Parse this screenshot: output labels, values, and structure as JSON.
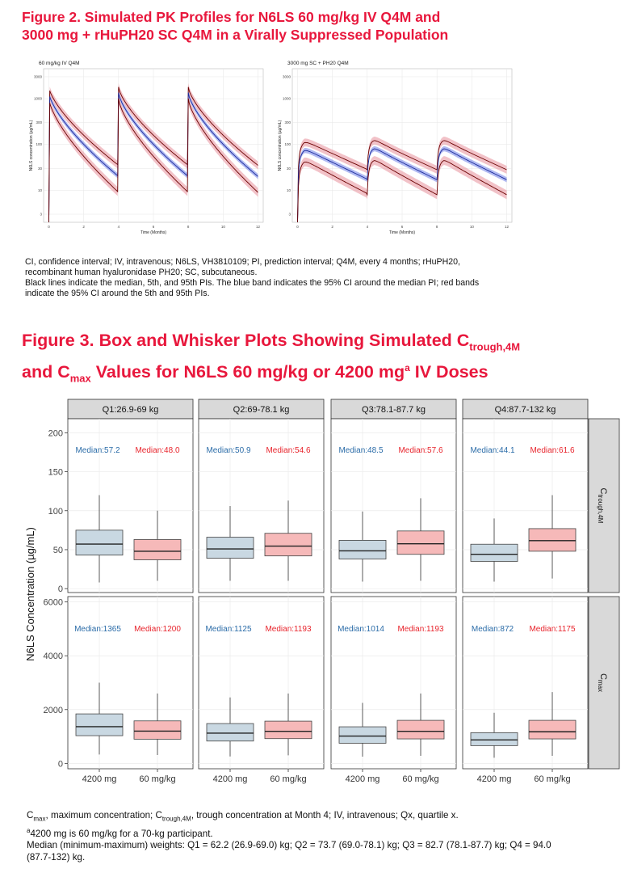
{
  "figure2": {
    "title_line1": "Figure 2. Simulated PK Profiles for N6LS 60 mg/kg IV Q4M and",
    "title_line2": "3000 mg + rHuPH20 SC Q4M in a Virally Suppressed Population",
    "notes": [
      "CI, confidence interval; IV, intravenous; N6LS, VH3810109; PI, prediction interval; Q4M, every 4 months; rHuPH20,",
      "recombinant human hyaluronidase PH20; SC, subcutaneous.",
      "Black lines indicate the median, 5th, and 95th PIs. The blue band indicates the 95% CI around the median PI; red bands",
      "indicate the 95% CI around the 5th and 95th PIs."
    ]
  },
  "figure3": {
    "title_line1_pre": "Figure 3. Box and Whisker Plots Showing Simulated C",
    "title_line1_sub": "trough,4M",
    "title_line2_pre": "and C",
    "title_line2_sub": "max",
    "title_line2_mid": " Values for N6LS 60 mg/kg or 4200 mg",
    "title_line2_sup": "a",
    "title_line2_post": " IV Doses",
    "notes": {
      "line1_a": "C",
      "line1_a_sub": "max",
      "line1_b": ", maximum concentration; C",
      "line1_b_sub": "trough,4M",
      "line1_c": ", trough concentration at Month 4; IV, intravenous; Qx, quartile x.",
      "line2_sup": "a",
      "line2": "4200 mg is 60 mg/kg for a 70-kg participant.",
      "line3": "Median (minimum-maximum) weights: Q1 = 62.2 (26.9-69.0) kg; Q2 = 73.7 (69.0-78.1) kg; Q3 = 82.7 (78.1-87.7) kg; Q4 = 94.0",
      "line4": "(87.7-132) kg."
    }
  },
  "chart_data": [
    {
      "type": "line",
      "panel": "60 mg/kg IV Q4M",
      "xlabel": "Time (Months)",
      "ylabel": "N6LS concentration (µg/mL)",
      "x_ticks": [
        0,
        2,
        4,
        6,
        8,
        10,
        12
      ],
      "y_ticks": [
        3,
        10,
        30,
        100,
        300,
        1000,
        3000
      ],
      "y_scale": "log",
      "xlim": [
        -0.3,
        12.3
      ],
      "ylim": [
        2,
        4500
      ],
      "dose_times": [
        0,
        4,
        8
      ],
      "series": [
        {
          "name": "95th PI",
          "peak": 1800,
          "trough": 35,
          "color": "#111111",
          "band_color": "#e8909a"
        },
        {
          "name": "median",
          "peak": 1350,
          "trough": 20,
          "color": "#111111",
          "band_color": "#6f80e8"
        },
        {
          "name": "5th PI",
          "peak": 1000,
          "trough": 9,
          "color": "#111111",
          "band_color": "#e8909a"
        }
      ]
    },
    {
      "type": "line",
      "panel": "3000 mg SC + PH20 Q4M",
      "xlabel": "Time (Months)",
      "ylabel": "N6LS concentration (µg/mL)",
      "x_ticks": [
        0,
        2,
        4,
        6,
        8,
        10,
        12
      ],
      "y_ticks": [
        3,
        10,
        30,
        100,
        300,
        1000,
        3000
      ],
      "y_scale": "log",
      "xlim": [
        -0.3,
        12.3
      ],
      "ylim": [
        2,
        4500
      ],
      "dose_times": [
        0,
        4,
        8
      ],
      "series": [
        {
          "name": "95th PI",
          "peak": 120,
          "trough": 28,
          "color": "#111111",
          "band_color": "#e8909a"
        },
        {
          "name": "median",
          "peak": 80,
          "trough": 17,
          "color": "#111111",
          "band_color": "#6f80e8"
        },
        {
          "name": "5th PI",
          "peak": 45,
          "trough": 8,
          "color": "#111111",
          "band_color": "#e8909a"
        }
      ]
    },
    {
      "type": "box",
      "facets_columns": [
        "Q1:26.9-69 kg",
        "Q2:69-78.1 kg",
        "Q3:78.1-87.7 kg",
        "Q4:87.7-132 kg"
      ],
      "facets_rows": [
        {
          "label": "C",
          "label_sub": "trough,4M",
          "ylim": [
            -5,
            218
          ],
          "y_ticks": [
            0,
            50,
            100,
            150,
            200
          ]
        },
        {
          "label": "C",
          "label_sub": "max",
          "ylim": [
            -200,
            6200
          ],
          "y_ticks": [
            0,
            2000,
            4000,
            6000
          ]
        }
      ],
      "categories": [
        "4200 mg",
        "60 mg/kg"
      ],
      "ylabel": "N6LS Concentration (µg/mL)",
      "colors": {
        "4200 mg": "#c9d8e2",
        "60 mg/kg": "#f6b9b9",
        "median_text_4200": "#2b6ca8",
        "median_text_60": "#e8242c"
      },
      "data": [
        [
          [
            {
              "category": "4200 mg",
              "min": 8,
              "q1": 43,
              "median": 57.2,
              "q3": 75,
              "max": 120,
              "label": "Median:57.2"
            },
            {
              "category": "60 mg/kg",
              "min": 10,
              "q1": 37,
              "median": 48.0,
              "q3": 63,
              "max": 100,
              "label": "Median:48.0"
            }
          ],
          [
            {
              "category": "4200 mg",
              "min": 10,
              "q1": 39,
              "median": 50.9,
              "q3": 66,
              "max": 106,
              "label": "Median:50.9"
            },
            {
              "category": "60 mg/kg",
              "min": 10,
              "q1": 42,
              "median": 54.6,
              "q3": 71,
              "max": 113,
              "label": "Median:54.6"
            }
          ],
          [
            {
              "category": "4200 mg",
              "min": 9,
              "q1": 38,
              "median": 48.5,
              "q3": 62,
              "max": 99,
              "label": "Median:48.5"
            },
            {
              "category": "60 mg/kg",
              "min": 10,
              "q1": 44,
              "median": 57.6,
              "q3": 74,
              "max": 116,
              "label": "Median:57.6"
            }
          ],
          [
            {
              "category": "4200 mg",
              "min": 9,
              "q1": 35,
              "median": 44.1,
              "q3": 57,
              "max": 90,
              "label": "Median:44.1"
            },
            {
              "category": "60 mg/kg",
              "min": 13,
              "q1": 48,
              "median": 61.6,
              "q3": 77,
              "max": 120,
              "label": "Median:61.6"
            }
          ]
        ],
        [
          [
            {
              "category": "4200 mg",
              "min": 330,
              "q1": 1030,
              "median": 1365,
              "q3": 1840,
              "max": 3000,
              "label": "Median:1365"
            },
            {
              "category": "60 mg/kg",
              "min": 310,
              "q1": 900,
              "median": 1200,
              "q3": 1580,
              "max": 2600,
              "label": "Median:1200"
            }
          ],
          [
            {
              "category": "4200 mg",
              "min": 260,
              "q1": 830,
              "median": 1125,
              "q3": 1480,
              "max": 2450,
              "label": "Median:1125"
            },
            {
              "category": "60 mg/kg",
              "min": 300,
              "q1": 920,
              "median": 1193,
              "q3": 1570,
              "max": 2600,
              "label": "Median:1193"
            }
          ],
          [
            {
              "category": "4200 mg",
              "min": 250,
              "q1": 750,
              "median": 1014,
              "q3": 1360,
              "max": 2250,
              "label": "Median:1014"
            },
            {
              "category": "60 mg/kg",
              "min": 280,
              "q1": 910,
              "median": 1193,
              "q3": 1600,
              "max": 2600,
              "label": "Median:1193"
            }
          ],
          [
            {
              "category": "4200 mg",
              "min": 210,
              "q1": 660,
              "median": 872,
              "q3": 1140,
              "max": 1880,
              "label": "Median:872"
            },
            {
              "category": "60 mg/kg",
              "min": 280,
              "q1": 910,
              "median": 1175,
              "q3": 1600,
              "max": 2650,
              "label": "Median:1175"
            }
          ]
        ]
      ]
    }
  ]
}
